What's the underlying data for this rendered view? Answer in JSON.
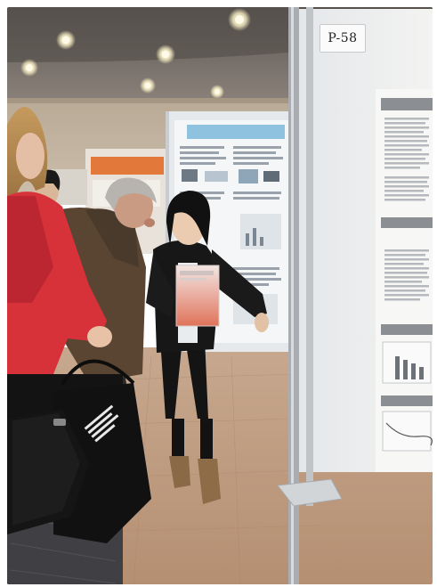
{
  "scene": {
    "poster_tag": "P-58"
  }
}
